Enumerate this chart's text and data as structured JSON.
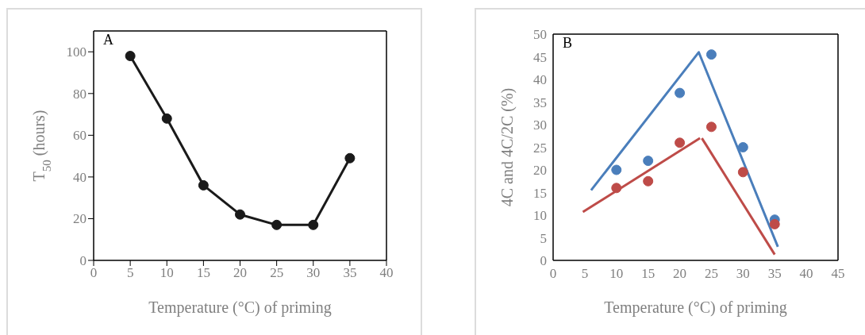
{
  "chart_data": [
    {
      "type": "line",
      "annotations": [
        "A"
      ],
      "xlabel": "Temperature (°C) of priming",
      "ylabel": "T$_{50}$ (hours)",
      "x": [
        5,
        10,
        15,
        20,
        25,
        30,
        35
      ],
      "values": [
        98,
        68,
        36,
        22,
        17,
        17,
        49
      ],
      "color": "#1a1a1a",
      "marker": "circle",
      "xlim": [
        0,
        40
      ],
      "xticks": [
        0,
        5,
        10,
        15,
        20,
        25,
        30,
        35,
        40
      ],
      "ylim": [
        0,
        110
      ],
      "yticks": [
        0,
        20,
        40,
        60,
        80,
        100
      ]
    },
    {
      "type": "scatter",
      "annotations": [
        "B"
      ],
      "xlabel": "Temperature (°C) of priming",
      "ylabel": "4C and 4C/2C (%)",
      "marker": "circle",
      "xlim": [
        0,
        45
      ],
      "xticks": [
        0,
        5,
        10,
        15,
        20,
        25,
        30,
        35,
        40,
        45
      ],
      "ylim": [
        0,
        50
      ],
      "yticks": [
        0,
        5,
        10,
        15,
        20,
        25,
        30,
        35,
        40,
        45,
        50
      ],
      "series": [
        {
          "color": "#4a7ebb",
          "x": [
            10,
            15,
            20,
            25,
            30,
            35
          ],
          "values": [
            20,
            22,
            37,
            45.5,
            25,
            9
          ]
        },
        {
          "color": "#be4b48",
          "x": [
            10,
            15,
            20,
            25,
            30,
            35
          ],
          "values": [
            16,
            17.5,
            26,
            29.5,
            19.5,
            8
          ]
        },
        {
          "type": "line",
          "marker": "none",
          "color": "#4a7ebb",
          "x": [
            6,
            23,
            35.5
          ],
          "values": [
            15.5,
            46,
            3
          ]
        },
        {
          "type": "line",
          "marker": "none",
          "color": "#be4b48",
          "x": [
            4.7,
            23.2
          ],
          "values": [
            10.7,
            27
          ]
        },
        {
          "type": "line",
          "marker": "none",
          "color": "#be4b48",
          "x": [
            23.5,
            35
          ],
          "values": [
            27,
            1.3
          ]
        }
      ]
    }
  ]
}
